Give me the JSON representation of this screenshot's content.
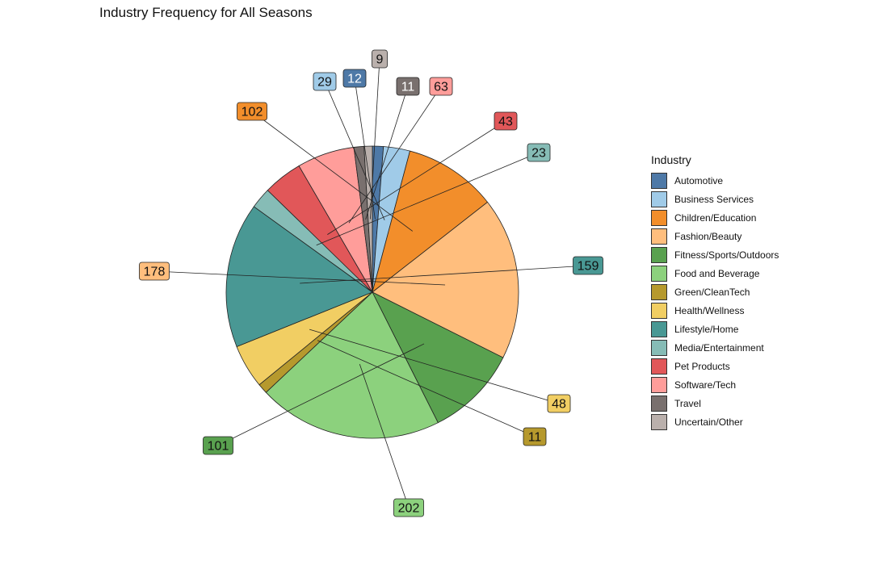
{
  "title": "Industry Frequency for All Seasons",
  "chart_data": {
    "type": "pie",
    "title": "Industry Frequency for All Seasons",
    "legend_title": "Industry",
    "legend_position": "right",
    "direction": "clockwise",
    "start": "12 o'clock",
    "slices": [
      {
        "label": "Automotive",
        "value": 12,
        "color": "#4E79A7"
      },
      {
        "label": "Business Services",
        "value": 29,
        "color": "#A0CBE8"
      },
      {
        "label": "Children/Education",
        "value": 102,
        "color": "#F28E2B"
      },
      {
        "label": "Fashion/Beauty",
        "value": 178,
        "color": "#FFBE7D"
      },
      {
        "label": "Fitness/Sports/Outdoors",
        "value": 101,
        "color": "#59A14F"
      },
      {
        "label": "Food and Beverage",
        "value": 202,
        "color": "#8CD17D"
      },
      {
        "label": "Green/CleanTech",
        "value": 11,
        "color": "#B6992D"
      },
      {
        "label": "Health/Wellness",
        "value": 48,
        "color": "#F1CE63"
      },
      {
        "label": "Lifestyle/Home",
        "value": 159,
        "color": "#499894"
      },
      {
        "label": "Media/Entertainment",
        "value": 23,
        "color": "#86BCB6"
      },
      {
        "label": "Pet Products",
        "value": 43,
        "color": "#E15759"
      },
      {
        "label": "Software/Tech",
        "value": 63,
        "color": "#FF9D9A"
      },
      {
        "label": "Travel",
        "value": 11,
        "color": "#79706E"
      },
      {
        "label": "Uncertain/Other",
        "value": 9,
        "color": "#BAB0AC"
      }
    ]
  }
}
